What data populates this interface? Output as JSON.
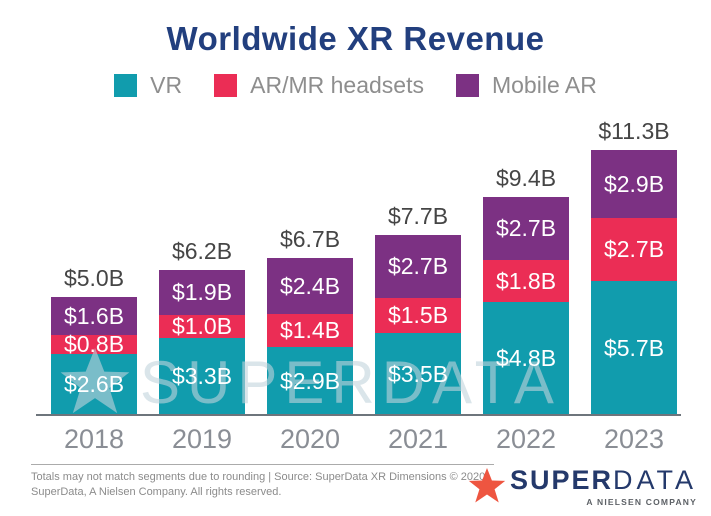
{
  "title": "Worldwide XR Revenue",
  "title_color": "#223F7E",
  "legend": [
    {
      "label": "VR",
      "color": "#119CAD"
    },
    {
      "label": "AR/MR headsets",
      "color": "#EB2D55"
    },
    {
      "label": "Mobile AR",
      "color": "#7C3183"
    }
  ],
  "chart_data": {
    "type": "bar",
    "stacked": true,
    "categories": [
      "2018",
      "2019",
      "2020",
      "2021",
      "2022",
      "2023"
    ],
    "series": [
      {
        "name": "VR",
        "color": "#119CAD",
        "values": [
          2.6,
          3.3,
          2.9,
          3.5,
          4.8,
          5.7
        ],
        "labels": [
          "$2.6B",
          "$3.3B",
          "$2.9B",
          "$3.5B",
          "$4.8B",
          "$5.7B"
        ]
      },
      {
        "name": "AR/MR headsets",
        "color": "#EB2D55",
        "values": [
          0.8,
          1.0,
          1.4,
          1.5,
          1.8,
          2.7
        ],
        "labels": [
          "$0.8B",
          "$1.0B",
          "$1.4B",
          "$1.5B",
          "$1.8B",
          "$2.7B"
        ]
      },
      {
        "name": "Mobile AR",
        "color": "#7C3183",
        "values": [
          1.6,
          1.9,
          2.4,
          2.7,
          2.7,
          2.9
        ],
        "labels": [
          "$1.6B",
          "$1.9B",
          "$2.4B",
          "$2.7B",
          "$2.7B",
          "$2.9B"
        ]
      }
    ],
    "totals": [
      5.0,
      6.2,
      6.7,
      7.7,
      9.4,
      11.3
    ],
    "total_labels": [
      "$5.0B",
      "$6.2B",
      "$6.7B",
      "$7.7B",
      "$9.4B",
      "$11.3B"
    ],
    "unit": "USD billions",
    "ylim": [
      0,
      11.3
    ],
    "grid": false,
    "legend_position": "top"
  },
  "watermark": {
    "text": "SUPERDATA"
  },
  "footer": {
    "note_line1": "Totals may not match segments due to rounding | Source: SuperData XR Dimensions © 2020",
    "note_line2": "SuperData, A Nielsen Company. All rights reserved."
  },
  "logo": {
    "super": "SUPER",
    "data": "DATA",
    "tagline": "A NIELSEN COMPANY",
    "star_color": "#EE5540",
    "navy": "#24396B"
  }
}
